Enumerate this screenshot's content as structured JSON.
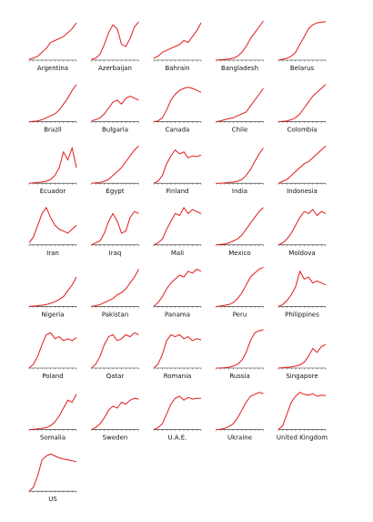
{
  "chart_data": [
    {
      "type": "line",
      "title": "Argentina",
      "color": "#e31a1c",
      "ylim": [
        0,
        100
      ],
      "values": [
        2,
        5,
        10,
        20,
        30,
        45,
        50,
        55,
        60,
        70,
        80,
        95
      ]
    },
    {
      "type": "line",
      "title": "Azerbaijan",
      "color": "#e31a1c",
      "ylim": [
        0,
        100
      ],
      "values": [
        2,
        5,
        15,
        40,
        70,
        90,
        80,
        40,
        35,
        55,
        85,
        98
      ]
    },
    {
      "type": "line",
      "title": "Bahrain",
      "color": "#e31a1c",
      "ylim": [
        0,
        100
      ],
      "values": [
        5,
        10,
        20,
        25,
        30,
        35,
        40,
        50,
        45,
        60,
        75,
        95
      ]
    },
    {
      "type": "line",
      "title": "Bangladesh",
      "color": "#e31a1c",
      "ylim": [
        0,
        100
      ],
      "values": [
        0,
        1,
        2,
        3,
        5,
        10,
        20,
        35,
        55,
        70,
        85,
        100
      ]
    },
    {
      "type": "line",
      "title": "Belarus",
      "color": "#e31a1c",
      "ylim": [
        0,
        100
      ],
      "values": [
        0,
        2,
        5,
        10,
        20,
        40,
        60,
        80,
        90,
        95,
        97,
        98
      ]
    },
    {
      "type": "line",
      "title": "Brazil",
      "color": "#e31a1c",
      "ylim": [
        0,
        100
      ],
      "values": [
        0,
        1,
        2,
        5,
        10,
        15,
        20,
        30,
        45,
        60,
        80,
        95
      ]
    },
    {
      "type": "line",
      "title": "Bulgaria",
      "color": "#e31a1c",
      "ylim": [
        0,
        100
      ],
      "values": [
        2,
        5,
        10,
        20,
        35,
        50,
        55,
        45,
        60,
        65,
        60,
        55
      ]
    },
    {
      "type": "line",
      "title": "Canada",
      "color": "#e31a1c",
      "ylim": [
        0,
        100
      ],
      "values": [
        0,
        2,
        10,
        30,
        55,
        70,
        80,
        85,
        88,
        85,
        80,
        75
      ]
    },
    {
      "type": "line",
      "title": "Chile",
      "color": "#e31a1c",
      "ylim": [
        0,
        100
      ],
      "values": [
        0,
        2,
        5,
        8,
        10,
        15,
        20,
        25,
        40,
        55,
        70,
        85
      ]
    },
    {
      "type": "line",
      "title": "Colombia",
      "color": "#e31a1c",
      "ylim": [
        0,
        100
      ],
      "values": [
        0,
        1,
        2,
        5,
        10,
        20,
        35,
        50,
        65,
        75,
        85,
        95
      ]
    },
    {
      "type": "line",
      "title": "Ecuador",
      "color": "#e31a1c",
      "ylim": [
        0,
        100
      ],
      "values": [
        0,
        1,
        2,
        3,
        5,
        10,
        20,
        40,
        80,
        60,
        90,
        40
      ]
    },
    {
      "type": "line",
      "title": "Egypt",
      "color": "#e31a1c",
      "ylim": [
        0,
        100
      ],
      "values": [
        0,
        1,
        2,
        5,
        10,
        20,
        30,
        40,
        55,
        70,
        85,
        95
      ]
    },
    {
      "type": "line",
      "title": "Finland",
      "color": "#e31a1c",
      "ylim": [
        0,
        100
      ],
      "values": [
        0,
        5,
        20,
        50,
        70,
        85,
        75,
        80,
        65,
        70,
        68,
        72
      ]
    },
    {
      "type": "line",
      "title": "India",
      "color": "#e31a1c",
      "ylim": [
        0,
        100
      ],
      "values": [
        0,
        0,
        1,
        2,
        3,
        5,
        10,
        20,
        35,
        55,
        75,
        90
      ]
    },
    {
      "type": "line",
      "title": "Indonesia",
      "color": "#e31a1c",
      "ylim": [
        0,
        100
      ],
      "values": [
        0,
        5,
        10,
        20,
        30,
        40,
        50,
        55,
        65,
        75,
        85,
        95
      ]
    },
    {
      "type": "line",
      "title": "Iran",
      "color": "#e31a1c",
      "ylim": [
        0,
        100
      ],
      "values": [
        5,
        20,
        50,
        80,
        95,
        70,
        50,
        40,
        35,
        30,
        40,
        50
      ]
    },
    {
      "type": "line",
      "title": "Iraq",
      "color": "#e31a1c",
      "ylim": [
        0,
        100
      ],
      "values": [
        0,
        5,
        10,
        30,
        60,
        80,
        60,
        30,
        35,
        70,
        85,
        80
      ]
    },
    {
      "type": "line",
      "title": "Mali",
      "color": "#e31a1c",
      "ylim": [
        0,
        100
      ],
      "values": [
        0,
        5,
        15,
        40,
        60,
        80,
        75,
        95,
        80,
        90,
        85,
        80
      ]
    },
    {
      "type": "line",
      "title": "Mexico",
      "color": "#e31a1c",
      "ylim": [
        0,
        100
      ],
      "values": [
        0,
        1,
        2,
        5,
        10,
        15,
        25,
        40,
        55,
        70,
        85,
        95
      ]
    },
    {
      "type": "line",
      "title": "Moldova",
      "color": "#e31a1c",
      "ylim": [
        0,
        100
      ],
      "values": [
        0,
        5,
        15,
        30,
        50,
        70,
        85,
        80,
        90,
        75,
        85,
        80
      ]
    },
    {
      "type": "line",
      "title": "Nigeria",
      "color": "#e31a1c",
      "ylim": [
        0,
        100
      ],
      "values": [
        0,
        1,
        2,
        3,
        5,
        8,
        12,
        18,
        25,
        40,
        55,
        75
      ]
    },
    {
      "type": "line",
      "title": "Pakistan",
      "color": "#e31a1c",
      "ylim": [
        0,
        100
      ],
      "values": [
        0,
        2,
        5,
        10,
        15,
        20,
        30,
        35,
        45,
        60,
        75,
        95
      ]
    },
    {
      "type": "line",
      "title": "Panama",
      "color": "#e31a1c",
      "ylim": [
        0,
        100
      ],
      "values": [
        0,
        10,
        25,
        45,
        60,
        70,
        80,
        75,
        90,
        85,
        95,
        90
      ]
    },
    {
      "type": "line",
      "title": "Peru",
      "color": "#e31a1c",
      "ylim": [
        0,
        100
      ],
      "values": [
        0,
        1,
        3,
        5,
        10,
        20,
        35,
        55,
        75,
        85,
        95,
        100
      ]
    },
    {
      "type": "line",
      "title": "Philippines",
      "color": "#e31a1c",
      "ylim": [
        0,
        100
      ],
      "values": [
        0,
        5,
        15,
        30,
        50,
        90,
        70,
        75,
        60,
        65,
        60,
        55
      ]
    },
    {
      "type": "line",
      "title": "Poland",
      "color": "#e31a1c",
      "ylim": [
        0,
        100
      ],
      "values": [
        0,
        10,
        30,
        60,
        85,
        90,
        75,
        80,
        70,
        75,
        70,
        78
      ]
    },
    {
      "type": "line",
      "title": "Qatar",
      "color": "#e31a1c",
      "ylim": [
        0,
        100
      ],
      "values": [
        0,
        10,
        30,
        60,
        80,
        85,
        70,
        75,
        85,
        80,
        90,
        85
      ]
    },
    {
      "type": "line",
      "title": "Romania",
      "color": "#e31a1c",
      "ylim": [
        0,
        100
      ],
      "values": [
        0,
        10,
        35,
        70,
        85,
        80,
        85,
        75,
        80,
        70,
        75,
        72
      ]
    },
    {
      "type": "line",
      "title": "Russia",
      "color": "#e31a1c",
      "ylim": [
        0,
        100
      ],
      "values": [
        0,
        0,
        1,
        2,
        5,
        10,
        20,
        40,
        70,
        90,
        95,
        98
      ]
    },
    {
      "type": "line",
      "title": "Singapore",
      "color": "#e31a1c",
      "ylim": [
        0,
        100
      ],
      "values": [
        0,
        1,
        2,
        3,
        5,
        8,
        15,
        30,
        50,
        40,
        55,
        60
      ]
    },
    {
      "type": "line",
      "title": "Somalia",
      "color": "#e31a1c",
      "ylim": [
        0,
        100
      ],
      "values": [
        0,
        1,
        2,
        3,
        5,
        10,
        20,
        35,
        55,
        75,
        70,
        90
      ]
    },
    {
      "type": "line",
      "title": "Sweden",
      "color": "#e31a1c",
      "ylim": [
        0,
        100
      ],
      "values": [
        0,
        5,
        15,
        30,
        50,
        60,
        55,
        70,
        65,
        75,
        80,
        78
      ]
    },
    {
      "type": "line",
      "title": "U.A.E.",
      "color": "#e31a1c",
      "ylim": [
        0,
        100
      ],
      "values": [
        0,
        5,
        15,
        40,
        65,
        80,
        85,
        75,
        82,
        78,
        80,
        80
      ]
    },
    {
      "type": "line",
      "title": "Ukraine",
      "color": "#e31a1c",
      "ylim": [
        0,
        100
      ],
      "values": [
        0,
        1,
        3,
        8,
        15,
        30,
        50,
        70,
        85,
        90,
        95,
        92
      ]
    },
    {
      "type": "line",
      "title": "United Kingdom",
      "color": "#e31a1c",
      "ylim": [
        0,
        100
      ],
      "values": [
        0,
        10,
        40,
        70,
        85,
        95,
        90,
        88,
        92,
        85,
        88,
        87
      ]
    },
    {
      "type": "line",
      "title": "US",
      "color": "#e31a1c",
      "ylim": [
        0,
        100
      ],
      "values": [
        0,
        10,
        40,
        80,
        90,
        95,
        90,
        85,
        82,
        80,
        78,
        75
      ]
    }
  ]
}
